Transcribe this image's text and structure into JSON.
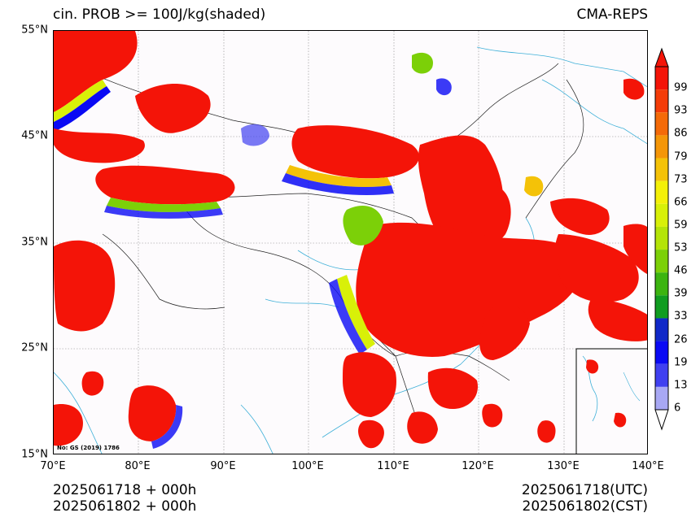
{
  "header": {
    "title_left": "cin. PROB >= 100J/kg(shaded)",
    "title_right": "CMA-REPS"
  },
  "axes": {
    "lat_labels": [
      "55°N",
      "45°N",
      "35°N",
      "25°N",
      "15°N"
    ],
    "lon_labels": [
      "70°E",
      "80°E",
      "90°E",
      "100°E",
      "110°E",
      "120°E",
      "130°E",
      "140°E"
    ],
    "lat_range": [
      15,
      55
    ],
    "lon_range": [
      70,
      140
    ]
  },
  "map": {
    "review_note": "No: GS (2019) 1786"
  },
  "colorbar": {
    "ticks": [
      "99",
      "93",
      "86",
      "79",
      "73",
      "66",
      "59",
      "53",
      "46",
      "39",
      "33",
      "26",
      "19",
      "13",
      "6"
    ],
    "colors": [
      "#f41408",
      "#f43c08",
      "#f46a08",
      "#f49608",
      "#f4c208",
      "#f4f008",
      "#d8f008",
      "#b4e408",
      "#7cd008",
      "#3cb410",
      "#109c20",
      "#1028c8",
      "#0a0af4",
      "#4040f0",
      "#a8a8f4"
    ]
  },
  "footer": {
    "left_line1": "2025061718  +  000h",
    "left_line2": "2025061802  +  000h",
    "right_line1": "2025061718(UTC)",
    "right_line2": "2025061802(CST)"
  }
}
